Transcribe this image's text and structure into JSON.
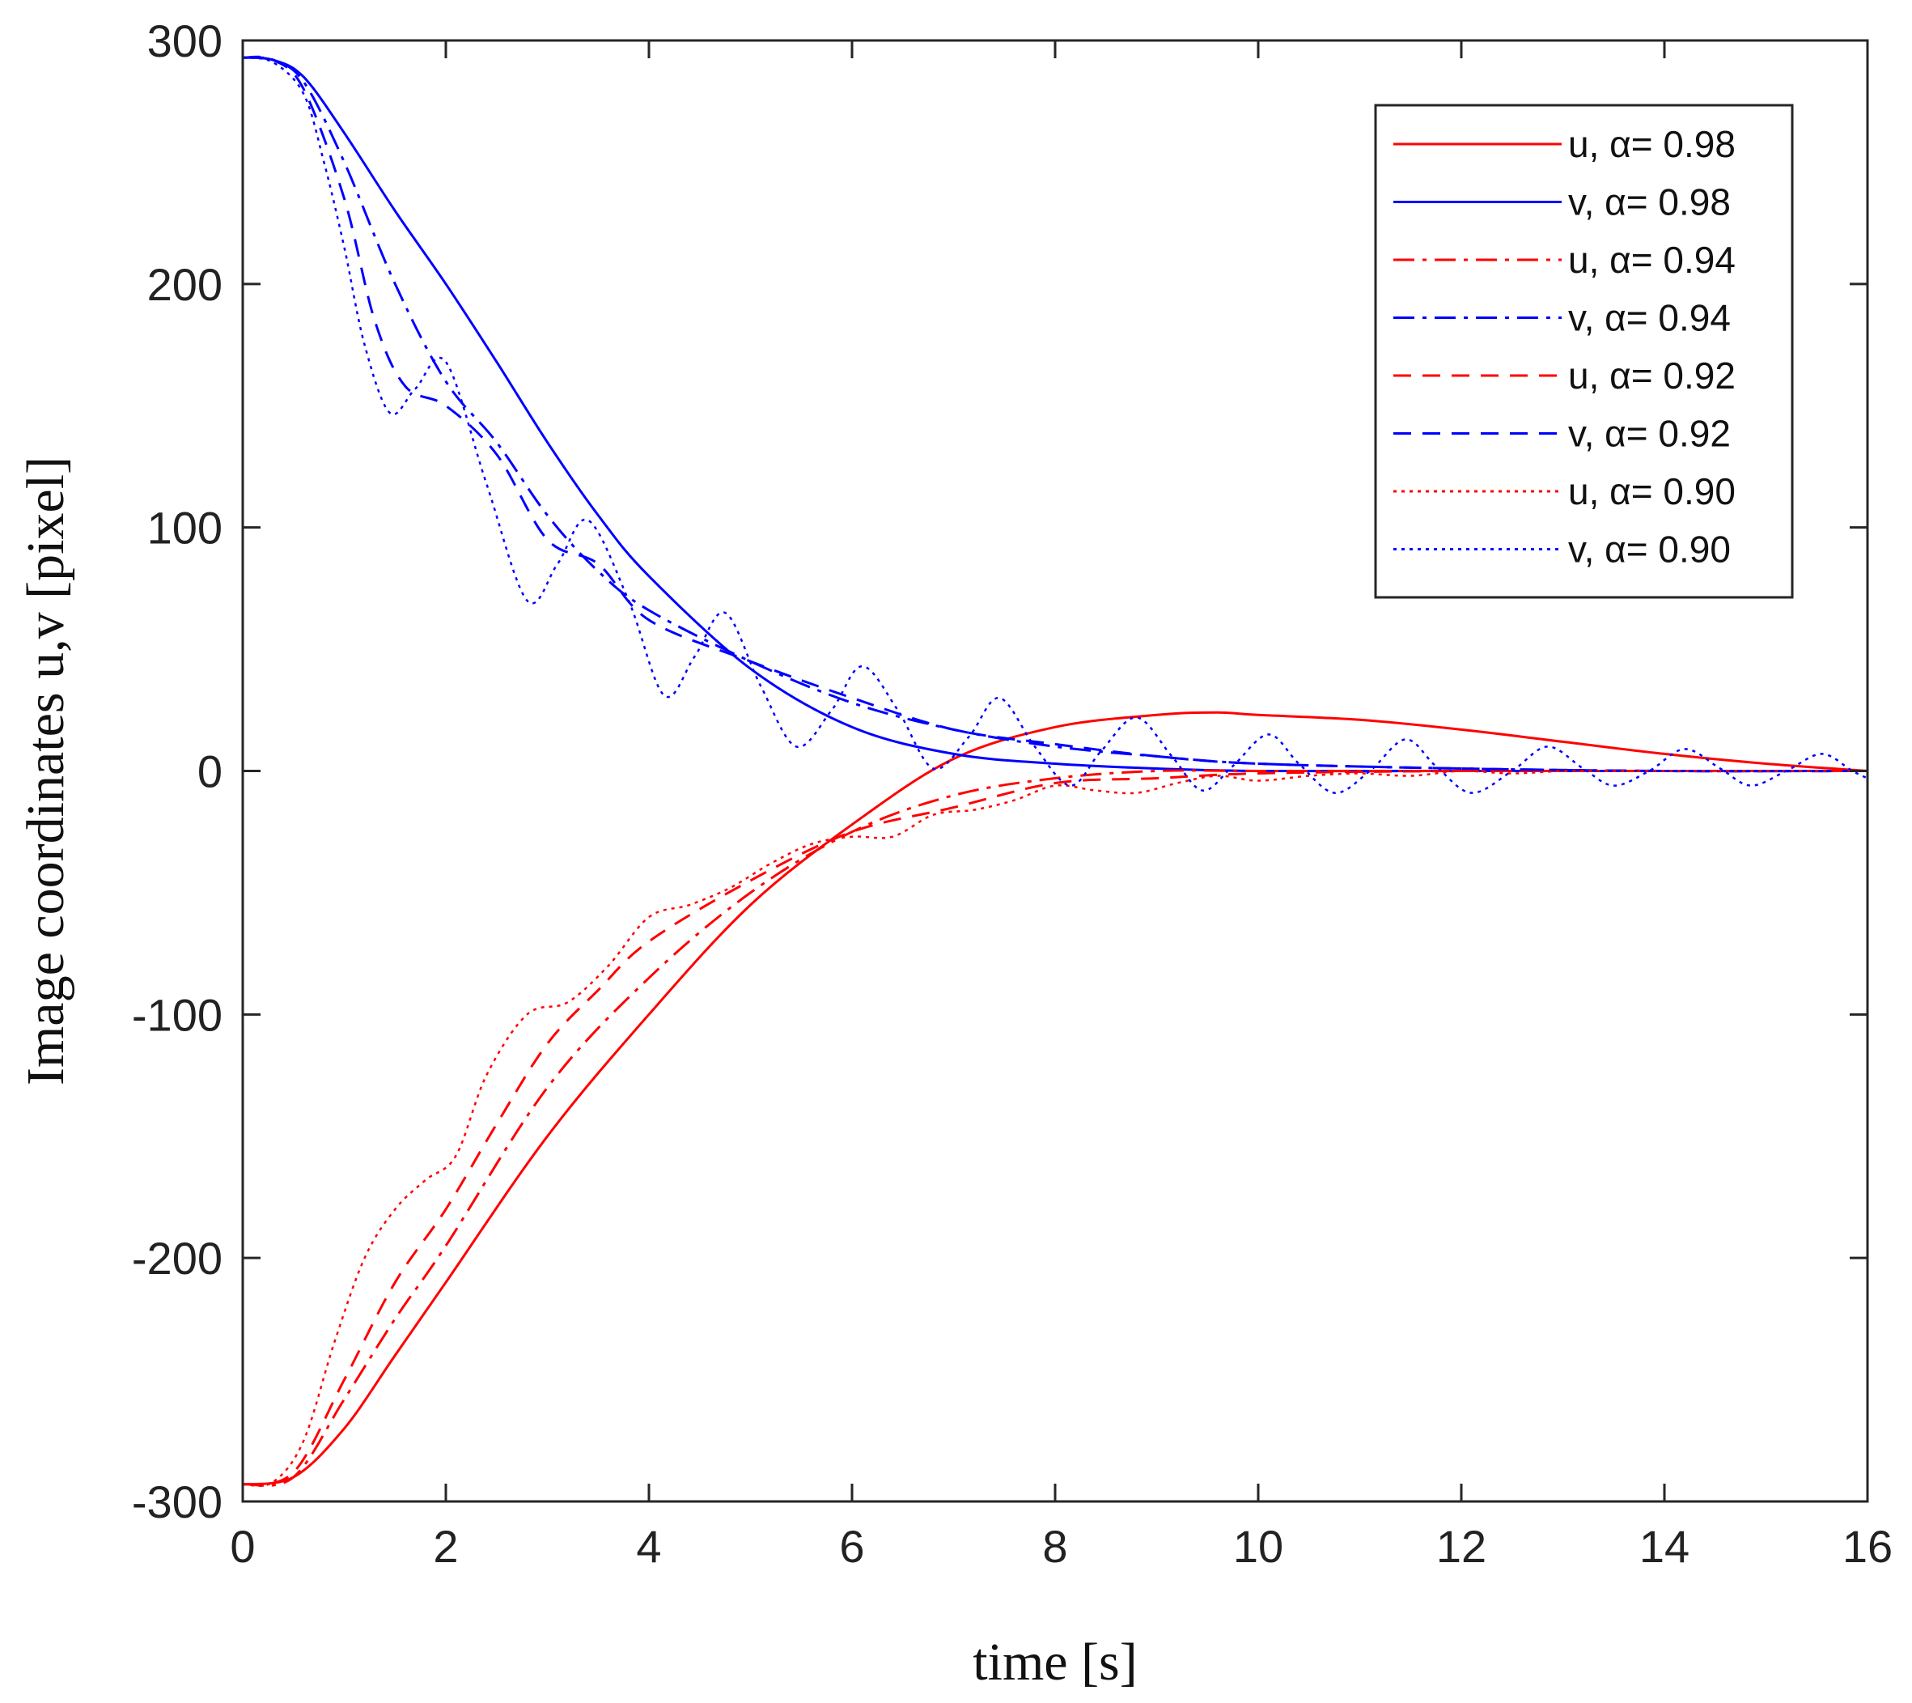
{
  "chart_data": {
    "type": "line",
    "title": "",
    "xlabel": "time [s]",
    "ylabel": "Image coordinates u,v [pixel]",
    "xlim": [
      0,
      16
    ],
    "ylim": [
      -300,
      300
    ],
    "xticks": [
      0,
      2,
      4,
      6,
      8,
      10,
      12,
      14,
      16
    ],
    "yticks": [
      -300,
      -200,
      -100,
      0,
      100,
      200,
      300
    ],
    "xtick_labels": [
      "0",
      "2",
      "4",
      "6",
      "8",
      "10",
      "12",
      "14",
      "16"
    ],
    "ytick_labels": [
      "-300",
      "-200",
      "-100",
      "0",
      "100",
      "200",
      "300"
    ],
    "grid": false,
    "legend_position": "top-right",
    "colors": {
      "u": "#ff0000",
      "v": "#0000ff"
    },
    "series": [
      {
        "name": "u, α= 0.98",
        "color": "#ff0000",
        "style": "solid",
        "x": [
          0,
          0.5,
          1,
          1.5,
          2,
          3,
          4,
          5,
          6,
          7,
          8,
          9,
          9.6,
          10,
          11,
          12,
          13,
          14,
          15,
          16
        ],
        "y": [
          -293,
          -290,
          -270,
          -240,
          -210,
          -150,
          -100,
          -55,
          -22,
          5,
          18,
          23,
          24,
          23,
          21,
          17,
          12,
          7,
          3,
          0
        ]
      },
      {
        "name": "v, α= 0.98",
        "color": "#0000ff",
        "style": "solid",
        "x": [
          0,
          0.3,
          0.6,
          1,
          1.5,
          2,
          2.5,
          3,
          3.5,
          4,
          5,
          6,
          7,
          8,
          9,
          10,
          12,
          14,
          16
        ],
        "y": [
          293,
          292,
          285,
          262,
          230,
          200,
          168,
          135,
          105,
          80,
          42,
          18,
          7,
          3,
          1,
          0,
          0,
          0,
          0
        ]
      },
      {
        "name": "u, α= 0.94",
        "color": "#ff0000",
        "style": "dashdot",
        "x": [
          0,
          0.5,
          1,
          1.5,
          2,
          3,
          4,
          5,
          6,
          7,
          8,
          9,
          10,
          12,
          14,
          16
        ],
        "y": [
          -293,
          -290,
          -258,
          -225,
          -195,
          -130,
          -85,
          -50,
          -25,
          -10,
          -3,
          0,
          0,
          0,
          0,
          0
        ]
      },
      {
        "name": "v, α= 0.94",
        "color": "#0000ff",
        "style": "dashdot",
        "x": [
          0,
          0.3,
          0.6,
          1,
          1.5,
          2,
          2.5,
          3,
          3.5,
          4,
          5,
          6,
          7,
          8,
          9,
          10,
          12,
          14,
          16
        ],
        "y": [
          293,
          292,
          283,
          250,
          200,
          160,
          135,
          105,
          82,
          66,
          45,
          28,
          17,
          10,
          6,
          3,
          1,
          0,
          0
        ]
      },
      {
        "name": "u, α= 0.92",
        "color": "#ff0000",
        "style": "dashed",
        "x": [
          0,
          0.5,
          1,
          1.5,
          2,
          2.5,
          3,
          3.5,
          4,
          5,
          6,
          7,
          8,
          9,
          10,
          12,
          14,
          16
        ],
        "y": [
          -293,
          -288,
          -250,
          -210,
          -180,
          -145,
          -112,
          -90,
          -70,
          -45,
          -25,
          -15,
          -5,
          -3,
          -1,
          0,
          0,
          0
        ]
      },
      {
        "name": "v, α= 0.92",
        "color": "#0000ff",
        "style": "dashed",
        "x": [
          0,
          0.3,
          0.6,
          1,
          1.3,
          1.6,
          2,
          2.5,
          3,
          3.5,
          4,
          5,
          6,
          7,
          8,
          9,
          10,
          12,
          14,
          16
        ],
        "y": [
          293,
          292,
          280,
          235,
          185,
          158,
          150,
          130,
          95,
          85,
          62,
          45,
          30,
          17,
          11,
          6,
          3,
          1,
          0,
          0
        ]
      },
      {
        "name": "u, α= 0.90",
        "color": "#ff0000",
        "style": "dotted",
        "x": [
          0,
          0.3,
          0.6,
          0.9,
          1.2,
          1.5,
          1.8,
          2.1,
          2.4,
          2.8,
          3.2,
          3.6,
          4.0,
          4.4,
          4.8,
          5.2,
          5.6,
          6.0,
          6.4,
          6.8,
          7.2,
          7.6,
          8.0,
          8.4,
          8.8,
          9.2,
          9.6,
          10.0,
          10.5,
          11.0,
          11.5,
          12.0,
          12.5,
          13.0,
          13.5,
          14.0,
          14.5,
          15.0,
          15.5,
          16.0
        ],
        "y": [
          -293,
          -292,
          -275,
          -235,
          -200,
          -180,
          -168,
          -158,
          -125,
          -100,
          -95,
          -80,
          -60,
          -55,
          -48,
          -38,
          -30,
          -27,
          -27,
          -18,
          -16,
          -12,
          -6,
          -8,
          -9,
          -5,
          -2,
          -4,
          -2,
          -1,
          -2,
          0,
          -1,
          0,
          0,
          0,
          0,
          0,
          0,
          0
        ]
      },
      {
        "name": "v, α= 0.90",
        "color": "#0000ff",
        "style": "dotted",
        "x": [
          0,
          0.3,
          0.6,
          0.8,
          1.0,
          1.2,
          1.45,
          1.7,
          2.0,
          2.4,
          2.8,
          3.1,
          3.4,
          3.8,
          4.15,
          4.45,
          4.75,
          5.1,
          5.45,
          5.8,
          6.1,
          6.45,
          6.8,
          7.15,
          7.45,
          7.8,
          8.15,
          8.45,
          8.8,
          9.15,
          9.45,
          9.75,
          10.1,
          10.4,
          10.75,
          11.1,
          11.45,
          11.75,
          12.1,
          12.5,
          12.85,
          13.2,
          13.5,
          13.85,
          14.2,
          14.55,
          14.85,
          15.2,
          15.55,
          15.85,
          16.0
        ],
        "y": [
          293,
          291,
          278,
          250,
          215,
          175,
          147,
          157,
          168,
          118,
          70,
          85,
          103,
          70,
          31,
          47,
          65,
          35,
          10,
          25,
          43,
          25,
          1,
          14,
          30,
          10,
          -6,
          8,
          22,
          6,
          -8,
          2,
          15,
          3,
          -9,
          0,
          13,
          2,
          -9,
          0,
          10,
          1,
          -6,
          0,
          9,
          1,
          -6,
          0,
          7,
          0,
          -3
        ]
      }
    ]
  }
}
